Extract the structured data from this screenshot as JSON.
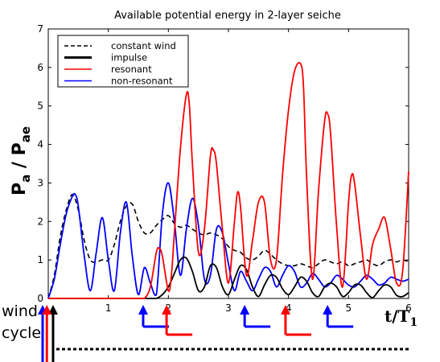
{
  "chart_data": {
    "type": "line",
    "title": "Available potential energy in 2-layer seiche",
    "xlabel_main": "t/T",
    "xlabel_sub": "1",
    "ylabel_main": "P",
    "ylabel_sub_a": "a",
    "ylabel_slash": " / P",
    "ylabel_sub_ae": "ae",
    "xlim": [
      0,
      6
    ],
    "ylim": [
      0,
      7
    ],
    "xticks": [
      1,
      2,
      3,
      4,
      5,
      6
    ],
    "yticks": [
      0,
      1,
      2,
      3,
      4,
      5,
      6,
      7
    ],
    "legend_position": "top-left",
    "side_labels": {
      "wind": "wind",
      "cycle": "cycle"
    },
    "series": [
      {
        "name": "constant wind",
        "color": "#000000",
        "dash": "dashed",
        "x": [
          0.0,
          0.1,
          0.2,
          0.3,
          0.4,
          0.5,
          0.6,
          0.7,
          0.8,
          0.9,
          1.0,
          1.1,
          1.2,
          1.3,
          1.4,
          1.5,
          1.6,
          1.7,
          1.8,
          1.9,
          2.0,
          2.1,
          2.2,
          2.3,
          2.4,
          2.5,
          2.6,
          2.7,
          2.8,
          2.9,
          3.0,
          3.1,
          3.2,
          3.3,
          3.4,
          3.5,
          3.6,
          3.7,
          3.8,
          3.9,
          4.0,
          4.1,
          4.2,
          4.3,
          4.4,
          4.5,
          4.6,
          4.7,
          4.8,
          4.9,
          5.0,
          5.1,
          5.2,
          5.3,
          5.4,
          5.5,
          5.6,
          5.7,
          5.8,
          5.9,
          6.0
        ],
        "values": [
          0,
          0.6,
          1.6,
          2.3,
          2.7,
          2.3,
          1.5,
          1.0,
          0.95,
          1.0,
          1.0,
          1.4,
          2.0,
          2.4,
          2.45,
          2.0,
          1.7,
          1.7,
          1.9,
          2.05,
          2.15,
          1.95,
          1.85,
          1.9,
          1.8,
          1.7,
          1.65,
          1.7,
          1.65,
          1.55,
          1.35,
          1.25,
          1.2,
          1.05,
          1.0,
          1.1,
          1.25,
          1.15,
          1.0,
          0.9,
          0.85,
          0.85,
          0.9,
          0.85,
          0.8,
          0.9,
          1.0,
          0.95,
          0.9,
          0.95,
          0.85,
          0.9,
          0.95,
          1.0,
          0.9,
          0.85,
          0.95,
          1.0,
          0.95,
          1.0,
          0.95
        ]
      },
      {
        "name": "impulse",
        "color": "#000000",
        "dash": "solid",
        "x": [
          0.0,
          0.1,
          0.2,
          0.3,
          0.4,
          0.5,
          0.6,
          0.7,
          0.8,
          0.9,
          1.0,
          1.1,
          1.2,
          1.3,
          1.4,
          1.5,
          1.6,
          1.7,
          1.8,
          1.9,
          2.0,
          2.1,
          2.2,
          2.3,
          2.4,
          2.5,
          2.6,
          2.7,
          2.8,
          2.9,
          3.0,
          3.1,
          3.2,
          3.3,
          3.4,
          3.5,
          3.6,
          3.7,
          3.8,
          3.9,
          4.0,
          4.1,
          4.2,
          4.3,
          4.4,
          4.5,
          4.6,
          4.7,
          4.8,
          4.9,
          5.0,
          5.1,
          5.2,
          5.3,
          5.4,
          5.5,
          5.6,
          5.7,
          5.8,
          5.9,
          6.0
        ],
        "values": [
          0,
          0,
          0,
          0,
          0,
          0,
          0,
          0,
          0,
          0,
          0,
          0,
          0,
          0,
          0,
          0,
          0,
          0,
          0,
          0.1,
          0.3,
          0.65,
          1.0,
          1.05,
          0.7,
          0.2,
          0.3,
          0.85,
          0.8,
          0.3,
          0.1,
          0.5,
          0.85,
          0.75,
          0.3,
          0.05,
          0.35,
          0.6,
          0.55,
          0.25,
          0.1,
          0.3,
          0.55,
          0.45,
          0.15,
          0.05,
          0.3,
          0.4,
          0.3,
          0.05,
          0.15,
          0.35,
          0.35,
          0.15,
          0.02,
          0.2,
          0.35,
          0.3,
          0.08,
          0.05,
          0.15
        ]
      },
      {
        "name": "resonant",
        "color": "#ff0000",
        "dash": "solid",
        "x": [
          0.0,
          0.1,
          0.2,
          0.3,
          0.4,
          0.5,
          0.6,
          0.7,
          0.8,
          0.9,
          1.0,
          1.1,
          1.2,
          1.3,
          1.4,
          1.5,
          1.6,
          1.7,
          1.8,
          1.85,
          1.9,
          2.0,
          2.05,
          2.1,
          2.2,
          2.3,
          2.35,
          2.4,
          2.5,
          2.6,
          2.7,
          2.75,
          2.8,
          2.9,
          3.0,
          3.1,
          3.15,
          3.2,
          3.3,
          3.4,
          3.5,
          3.6,
          3.7,
          3.8,
          3.9,
          4.0,
          4.1,
          4.2,
          4.25,
          4.3,
          4.4,
          4.5,
          4.6,
          4.65,
          4.7,
          4.8,
          4.9,
          5.0,
          5.05,
          5.1,
          5.2,
          5.3,
          5.4,
          5.5,
          5.6,
          5.7,
          5.8,
          5.9,
          6.0
        ],
        "values": [
          0,
          0,
          0,
          0,
          0,
          0,
          0,
          0,
          0,
          0,
          0,
          0,
          0,
          0,
          0,
          0,
          0,
          0.3,
          1.2,
          1.3,
          1.1,
          0.2,
          0.6,
          1.7,
          3.9,
          5.3,
          5.0,
          3.5,
          1.2,
          1.8,
          3.7,
          3.85,
          3.5,
          1.8,
          0.4,
          2.0,
          2.75,
          2.4,
          0.6,
          1.5,
          2.5,
          2.5,
          1.0,
          1.0,
          3.2,
          4.9,
          5.9,
          6.1,
          5.5,
          3.2,
          0.5,
          2.8,
          4.6,
          4.8,
          4.3,
          1.9,
          0.3,
          2.5,
          3.2,
          3.0,
          1.6,
          0.5,
          1.4,
          1.8,
          2.1,
          1.3,
          0.4,
          0.7,
          3.3
        ]
      },
      {
        "name": "non-resonant",
        "color": "#0000ff",
        "dash": "solid",
        "x": [
          0.0,
          0.1,
          0.2,
          0.3,
          0.4,
          0.45,
          0.5,
          0.6,
          0.7,
          0.8,
          0.9,
          1.0,
          1.1,
          1.2,
          1.3,
          1.4,
          1.5,
          1.6,
          1.7,
          1.8,
          1.9,
          2.0,
          2.1,
          2.2,
          2.3,
          2.4,
          2.5,
          2.6,
          2.7,
          2.8,
          2.9,
          3.0,
          3.1,
          3.2,
          3.3,
          3.4,
          3.5,
          3.6,
          3.7,
          3.8,
          3.9,
          4.0,
          4.1,
          4.2,
          4.3,
          4.4,
          4.5,
          4.6,
          4.7,
          4.8,
          4.9,
          5.0,
          5.1,
          5.2,
          5.3,
          5.4,
          5.5,
          5.6,
          5.7,
          5.8,
          5.9,
          6.0
        ],
        "values": [
          0,
          0.5,
          1.4,
          2.2,
          2.65,
          2.7,
          2.4,
          1.1,
          0.2,
          1.2,
          2.1,
          1.0,
          0.2,
          1.7,
          2.5,
          1.1,
          0.1,
          0.8,
          0.4,
          0.1,
          2.2,
          3.0,
          2.0,
          0.6,
          1.8,
          2.6,
          1.9,
          0.5,
          0.6,
          1.8,
          1.7,
          0.9,
          0.2,
          0.7,
          0.45,
          0.2,
          0.5,
          0.8,
          0.7,
          0.3,
          0.6,
          0.85,
          0.7,
          0.3,
          0.4,
          0.65,
          0.5,
          0.3,
          0.4,
          0.6,
          0.5,
          0.35,
          0.3,
          0.45,
          0.6,
          0.5,
          0.35,
          0.4,
          0.55,
          0.5,
          0.45,
          0.5
        ]
      }
    ],
    "wind_markers": [
      {
        "color": "#000000",
        "x": 0.08,
        "ymid": 58,
        "foot_y": 93,
        "shaft_x_off": 0,
        "foot_dir": 1
      },
      {
        "color": "#0000ff",
        "x": 0.0,
        "ymid": 58,
        "foot_y": 85,
        "shaft_x_off": -7,
        "foot_dir": 1
      },
      {
        "color": "#ff0000",
        "x": 0.03,
        "ymid": 58,
        "foot_y": 89,
        "shaft_x_off": -4,
        "foot_dir": 1
      },
      {
        "color": "#0000ff",
        "x": 1.58,
        "ymid": 10,
        "foot_y": 35,
        "shaft_x_off": 0,
        "foot_dir": 1
      },
      {
        "color": "#ff0000",
        "x": 1.97,
        "ymid": 20,
        "foot_y": 45,
        "shaft_x_off": 0,
        "foot_dir": 1
      },
      {
        "color": "#0000ff",
        "x": 3.27,
        "ymid": 10,
        "foot_y": 35,
        "shaft_x_off": 0,
        "foot_dir": 1
      },
      {
        "color": "#ff0000",
        "x": 3.95,
        "ymid": 20,
        "foot_y": 45,
        "shaft_x_off": 0,
        "foot_dir": 1
      },
      {
        "color": "#0000ff",
        "x": 4.65,
        "ymid": 10,
        "foot_y": 35,
        "shaft_x_off": 0,
        "foot_dir": 1
      }
    ]
  }
}
